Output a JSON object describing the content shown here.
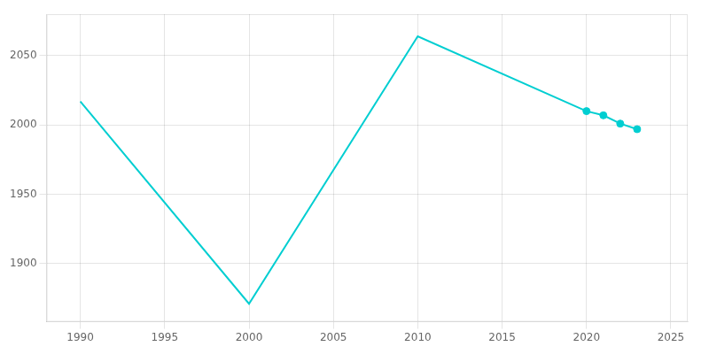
{
  "chart_data": {
    "type": "line",
    "x": [
      1990,
      2000,
      2010,
      2020,
      2021,
      2022,
      2023
    ],
    "series": [
      {
        "color": "#00CED1",
        "marker": "none",
        "line_style": "solid",
        "values": [
          2017,
          1871,
          2064,
          2010,
          2007,
          2001,
          1997
        ]
      },
      {
        "type": "scatter",
        "color": "#00CED1",
        "marker": "circle",
        "values": [
          null,
          null,
          null,
          2010,
          2007,
          2001,
          1997
        ]
      }
    ],
    "xlim": [
      1988,
      2026
    ],
    "ylim": [
      1858,
      2080
    ],
    "xticks": [
      1990,
      1995,
      2000,
      2005,
      2010,
      2015,
      2020,
      2025
    ],
    "yticks": [
      1900,
      1950,
      2000,
      2050
    ],
    "grid": true
  }
}
